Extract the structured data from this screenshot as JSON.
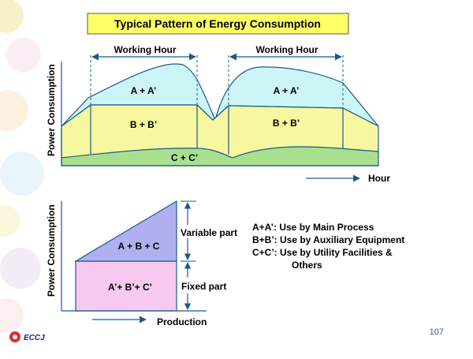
{
  "title": "Typical Pattern of  Energy Consumption",
  "top_chart": {
    "ylabel": "Power Consumption",
    "xlabel": "Hour",
    "working_hour_1": "Working Hour",
    "working_hour_2": "Working Hour",
    "label_aa_1": "A + A’",
    "label_aa_2": "A + A’",
    "label_bb_1": "B + B’",
    "label_bb_2": "B + B’",
    "label_cc": "C + C’"
  },
  "bottom_chart": {
    "ylabel": "Power Consumption",
    "xlabel": "Production",
    "label_abc": "A + B + C",
    "label_abc_prime": "A’+  B’+ C’",
    "variable_part": "Variable part",
    "fixed_part": "Fixed part"
  },
  "legend": {
    "line1": "A+A’: Use by Main Process",
    "line2": "B+B’: Use by Auxiliary Equipment",
    "line3": "C+C’: Use by Utility Facilities &",
    "line4": "Others"
  },
  "footer": {
    "logo_text": "ECCJ",
    "page_number": "107"
  },
  "colors": {
    "title_bg": "#ffff66",
    "area_a": "#ccf5f8",
    "area_b": "#f7f7a0",
    "area_c": "#a8e090",
    "tri_abc": "#b0b0f0",
    "rect_fixed": "#f7c8f0",
    "line": "#1a5a8a"
  }
}
